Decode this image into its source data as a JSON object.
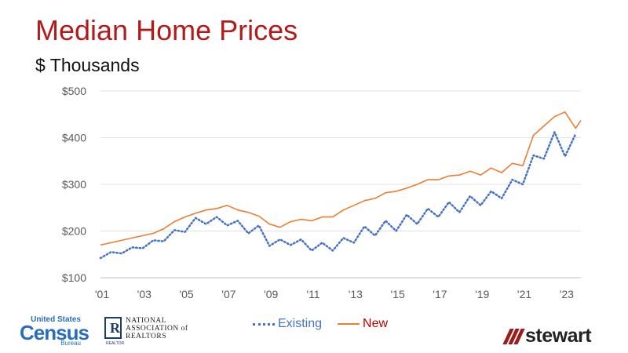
{
  "header": {
    "title": "Median Home Prices",
    "subtitle": "$ Thousands"
  },
  "legend": {
    "existing": "Existing",
    "new": "New"
  },
  "logos": {
    "census_top": "United States",
    "census_main": "Census",
    "census_bottom": "Bureau",
    "nar_letter": "R",
    "nar_line1": "NATIONAL",
    "nar_line2": "ASSOCIATION of",
    "nar_line3": "REALTORS",
    "nar_mark_caption": "REALTOR",
    "stewart": "stewart"
  },
  "chart_data": {
    "type": "line",
    "x_tick_labels": [
      "'01",
      "'03",
      "'05",
      "'07",
      "'09",
      "'11",
      "'13",
      "'15",
      "'17",
      "'19",
      "'21",
      "'23"
    ],
    "x_tick_years": [
      2001,
      2003,
      2005,
      2007,
      2009,
      2011,
      2013,
      2015,
      2017,
      2019,
      2021,
      2023
    ],
    "y_tick_labels": [
      "$100",
      "$200",
      "$300",
      "$400",
      "$500"
    ],
    "y_ticks": [
      100,
      200,
      300,
      400,
      500
    ],
    "ylim": [
      100,
      500
    ],
    "xlim": [
      2001,
      2023.75
    ],
    "grid": "horizontal",
    "legend_position": "bottom",
    "colors": {
      "existing": "#4472c4",
      "new": "#ed7d31"
    },
    "series": [
      {
        "name": "Existing",
        "style": "dotted",
        "x": [
          2001,
          2001.5,
          2002,
          2002.5,
          2003,
          2003.5,
          2004,
          2004.5,
          2005,
          2005.5,
          2006,
          2006.5,
          2007,
          2007.5,
          2008,
          2008.5,
          2009,
          2009.5,
          2010,
          2010.5,
          2011,
          2011.5,
          2012,
          2012.5,
          2013,
          2013.5,
          2014,
          2014.5,
          2015,
          2015.5,
          2016,
          2016.5,
          2017,
          2017.5,
          2018,
          2018.5,
          2019,
          2019.5,
          2020,
          2020.5,
          2021,
          2021.5,
          2022,
          2022.5,
          2023,
          2023.5
        ],
        "values": [
          142,
          155,
          152,
          165,
          163,
          180,
          178,
          202,
          198,
          228,
          215,
          230,
          212,
          222,
          195,
          212,
          168,
          182,
          170,
          182,
          158,
          175,
          158,
          185,
          175,
          210,
          190,
          222,
          200,
          235,
          215,
          248,
          230,
          262,
          240,
          275,
          255,
          285,
          270,
          310,
          300,
          362,
          355,
          412,
          360,
          408
        ]
      },
      {
        "name": "New",
        "style": "solid",
        "x": [
          2001,
          2001.5,
          2002,
          2002.5,
          2003,
          2003.5,
          2004,
          2004.5,
          2005,
          2005.5,
          2006,
          2006.5,
          2007,
          2007.5,
          2008,
          2008.5,
          2009,
          2009.5,
          2010,
          2010.5,
          2011,
          2011.5,
          2012,
          2012.5,
          2013,
          2013.5,
          2014,
          2014.5,
          2015,
          2015.5,
          2016,
          2016.5,
          2017,
          2017.5,
          2018,
          2018.5,
          2019,
          2019.5,
          2020,
          2020.5,
          2021,
          2021.5,
          2022,
          2022.5,
          2023,
          2023.5,
          2023.75
        ],
        "values": [
          170,
          175,
          180,
          185,
          190,
          195,
          205,
          220,
          230,
          238,
          245,
          248,
          255,
          245,
          240,
          232,
          215,
          208,
          220,
          225,
          222,
          230,
          230,
          245,
          255,
          265,
          270,
          282,
          285,
          292,
          300,
          310,
          310,
          318,
          320,
          328,
          320,
          335,
          325,
          345,
          340,
          405,
          425,
          445,
          455,
          420,
          437
        ]
      }
    ]
  }
}
